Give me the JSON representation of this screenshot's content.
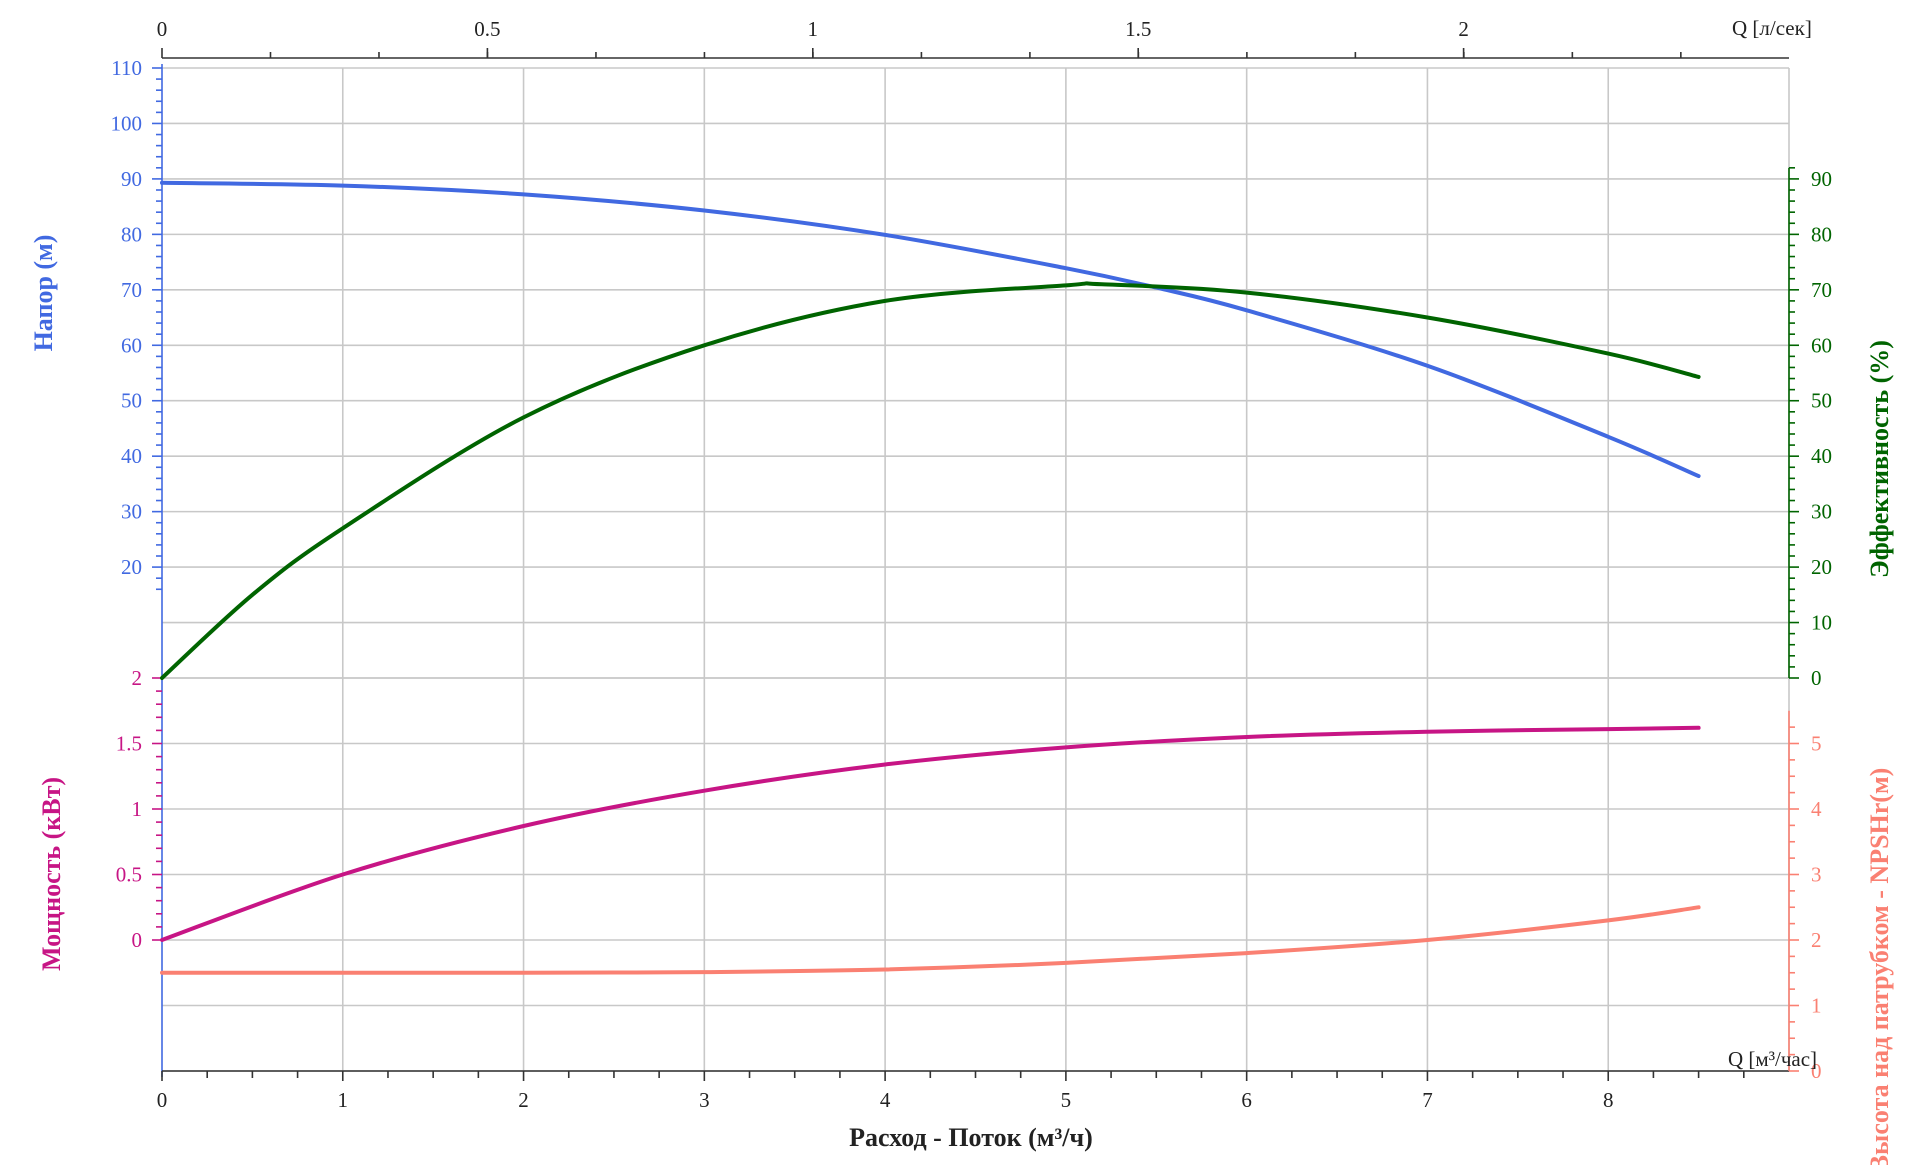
{
  "colors": {
    "head": "#4169e1",
    "efficiency": "#006400",
    "power": "#c71585",
    "npsh": "#fa8072",
    "axis": "#333333",
    "grid": "#c8c8c8"
  },
  "labels": {
    "head_axis": "Напор (м)",
    "efficiency_axis": "Эффективность (%)",
    "power_axis": "Мощность (кВт)",
    "npsh_axis": "Высота над патрубком - NPSHr(м)",
    "x_axis_title": "Расход - Поток (м³/ч)",
    "x_bottom_unit": "Q [м³/час]",
    "x_top_unit": "Q [л/сек]"
  },
  "chart_data": {
    "type": "line",
    "grid": true,
    "x_bottom": {
      "label": "Q [м³/час]",
      "range": [
        0,
        9
      ],
      "ticks": [
        0,
        1,
        2,
        3,
        4,
        5,
        6,
        7,
        8
      ],
      "tick_labels": [
        "0",
        "1",
        "2",
        "3",
        "4",
        "5",
        "6",
        "7",
        "8"
      ]
    },
    "x_top": {
      "label": "Q [л/сек]",
      "range": [
        0,
        2.5
      ],
      "ticks": [
        0,
        0.5,
        1,
        1.5,
        2
      ],
      "tick_labels": [
        "0",
        "0.5",
        "1",
        "1.5",
        "2"
      ]
    },
    "top_panel": {
      "left_axis": {
        "label": "Напор (м)",
        "range": [
          0,
          110
        ],
        "ticks": [
          20,
          30,
          40,
          50,
          60,
          70,
          80,
          90,
          100,
          110
        ],
        "tick_labels": [
          "20",
          "30",
          "40",
          "50",
          "60",
          "70",
          "80",
          "90",
          "100",
          "110"
        ]
      },
      "right_axis": {
        "label": "Эффективность (%)",
        "range": [
          0,
          110
        ],
        "ticks": [
          0,
          10,
          20,
          30,
          40,
          50,
          60,
          70,
          80,
          90
        ],
        "tick_labels": [
          "0",
          "10",
          "20",
          "30",
          "40",
          "50",
          "60",
          "70",
          "80",
          "90"
        ]
      }
    },
    "bottom_panel": {
      "left_axis": {
        "label": "Мощность (кВт)",
        "range": [
          -1,
          2
        ],
        "ticks": [
          0,
          0.5,
          1,
          1.5,
          2
        ],
        "tick_labels": [
          "0",
          "0.5",
          "1",
          "1.5",
          "2"
        ]
      },
      "right_axis": {
        "label": "Высота над патрубком - NPSHr(м)",
        "range": [
          0,
          6
        ],
        "ticks": [
          0,
          1,
          2,
          3,
          4,
          5
        ],
        "tick_labels": [
          "0",
          "1",
          "2",
          "3",
          "4",
          "5"
        ]
      }
    },
    "series": [
      {
        "key": "head",
        "panel": "top",
        "axis": "left",
        "x": [
          0,
          1,
          2,
          3,
          4,
          5,
          5.5,
          6,
          7,
          8,
          8.5
        ],
        "y": [
          89.3,
          88.8,
          87.2,
          84.3,
          79.9,
          73.9,
          70.4,
          66.3,
          56.3,
          43.5,
          36.4
        ]
      },
      {
        "key": "efficiency",
        "panel": "top",
        "axis": "right",
        "x": [
          0,
          0.5,
          1,
          2,
          3,
          4,
          5,
          5.2,
          6,
          7,
          8,
          8.5
        ],
        "y": [
          0,
          15,
          27,
          47,
          60,
          68,
          70.8,
          71,
          69.5,
          65,
          58.5,
          54.3
        ]
      },
      {
        "key": "power",
        "panel": "bottom",
        "axis": "left",
        "x": [
          0,
          1,
          2,
          3,
          4,
          5,
          6,
          7,
          8,
          8.5
        ],
        "y": [
          0,
          0.5,
          0.87,
          1.14,
          1.34,
          1.47,
          1.55,
          1.59,
          1.61,
          1.62
        ]
      },
      {
        "key": "npsh",
        "panel": "bottom",
        "axis": "right",
        "x": [
          0,
          1,
          2,
          3,
          4,
          5,
          6,
          7,
          8,
          8.5
        ],
        "y": [
          1.5,
          1.5,
          1.5,
          1.51,
          1.55,
          1.65,
          1.8,
          2.0,
          2.3,
          2.5
        ]
      }
    ]
  }
}
